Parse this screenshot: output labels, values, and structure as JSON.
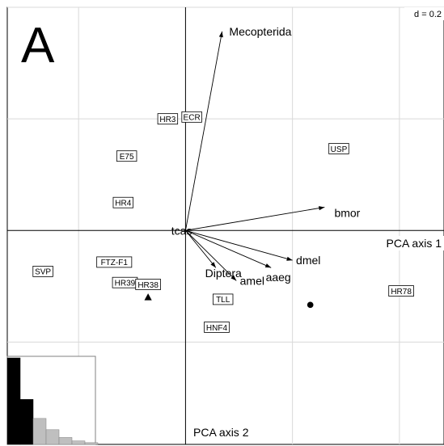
{
  "chart_data": {
    "type": "scatter",
    "panel_letter": "A",
    "scale_label": "d = 0.2",
    "axis1_label": "PCA axis 1",
    "axis2_label": "PCA axis 2",
    "grid": true,
    "xlim": [
      -1.0,
      1.45
    ],
    "ylim": [
      -1.15,
      1.2
    ],
    "grid_step": 0.6,
    "variables": [
      {
        "name": "Mecopterida",
        "x": 0.205,
        "y": 1.07
      },
      {
        "name": "bmor",
        "x": 0.78,
        "y": 0.125
      },
      {
        "name": "dmel",
        "x": 0.6,
        "y": -0.16
      },
      {
        "name": "aaeg",
        "x": 0.48,
        "y": -0.2
      },
      {
        "name": "amel",
        "x": 0.285,
        "y": -0.27
      },
      {
        "name": "Diptera",
        "x": 0.17,
        "y": -0.2
      },
      {
        "name": "tcas",
        "x": 0.0,
        "y": 0.0
      }
    ],
    "variable_label_offsets": [
      {
        "name": "Mecopterida",
        "dx": 0.04,
        "dy": 0.0
      },
      {
        "name": "bmor",
        "dx": 0.055,
        "dy": -0.03
      },
      {
        "name": "dmel",
        "dx": 0.02,
        "dy": 0.0
      },
      {
        "name": "aaeg",
        "dx": -0.03,
        "dy": -0.05
      },
      {
        "name": "amel",
        "dx": 0.02,
        "dy": -0.0
      },
      {
        "name": "Diptera",
        "dx": -0.06,
        "dy": -0.03
      },
      {
        "name": "tcas",
        "dx": -0.08,
        "dy": 0.0
      }
    ],
    "observations": [
      {
        "name": "HR3",
        "x": -0.1,
        "y": 0.6
      },
      {
        "name": "ECR",
        "x": 0.035,
        "y": 0.61
      },
      {
        "name": "USP",
        "x": 0.86,
        "y": 0.44
      },
      {
        "name": "E75",
        "x": -0.33,
        "y": 0.4
      },
      {
        "name": "HR4",
        "x": -0.35,
        "y": 0.15
      },
      {
        "name": "FTZ-F1",
        "x": -0.4,
        "y": -0.17
      },
      {
        "name": "SVP",
        "x": -0.8,
        "y": -0.22
      },
      {
        "name": "HR39",
        "x": -0.34,
        "y": -0.28
      },
      {
        "name": "HR38",
        "x": -0.21,
        "y": -0.29
      },
      {
        "name": "TLL",
        "x": 0.21,
        "y": -0.37
      },
      {
        "name": "HNF4",
        "x": 0.175,
        "y": -0.52
      },
      {
        "name": "HR78",
        "x": 1.21,
        "y": -0.325
      }
    ],
    "markers": [
      {
        "shape": "triangle",
        "x": -0.21,
        "y": -0.36
      },
      {
        "shape": "circle",
        "x": 0.7,
        "y": -0.4
      }
    ],
    "eigenvalues": [
      1.0,
      0.52,
      0.3,
      0.17,
      0.08,
      0.04,
      0.02
    ]
  }
}
